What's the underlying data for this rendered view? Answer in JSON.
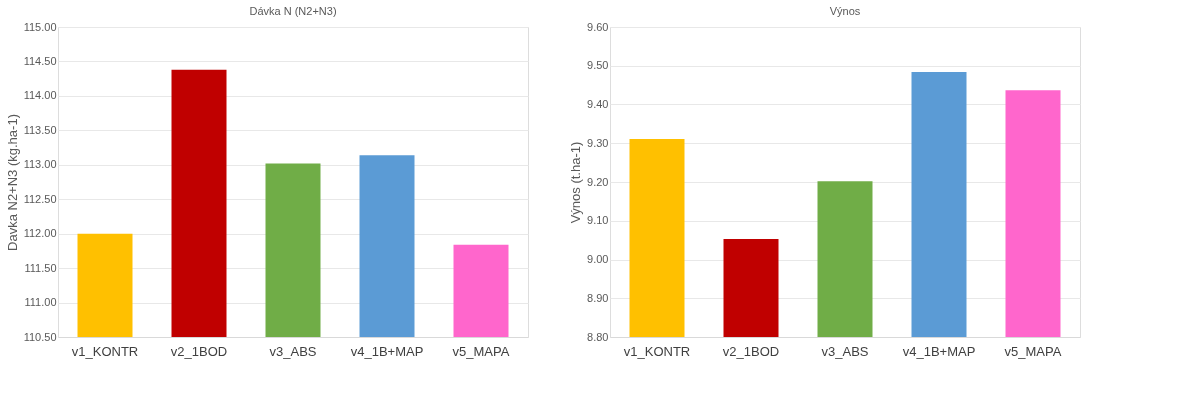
{
  "chart_data": [
    {
      "type": "bar",
      "title": "Dávka N (N2+N3)",
      "ylabel": "Davka N2+N3 (kg.ha-1)",
      "categories": [
        "v1_KONTR",
        "v2_1BOD",
        "v3_ABS",
        "v4_1B+MAP",
        "v5_MAPA"
      ],
      "values": [
        112.0,
        114.38,
        113.02,
        113.14,
        111.84
      ],
      "colors": [
        "#ffc000",
        "#c00000",
        "#70ad47",
        "#5b9bd5",
        "#ff66cc"
      ],
      "ylim": [
        110.5,
        115.0
      ],
      "yticks": [
        {
          "value": 110.5,
          "label": "110.50"
        },
        {
          "value": 111.0,
          "label": "111.00"
        },
        {
          "value": 111.5,
          "label": "111.50"
        },
        {
          "value": 112.0,
          "label": "112.00"
        },
        {
          "value": 112.5,
          "label": "112.50"
        },
        {
          "value": 113.0,
          "label": "113.00"
        },
        {
          "value": 113.5,
          "label": "113.50"
        },
        {
          "value": 114.0,
          "label": "114.00"
        },
        {
          "value": 114.5,
          "label": "114.50"
        },
        {
          "value": 115.0,
          "label": "115.00"
        }
      ],
      "grid": "y"
    },
    {
      "type": "bar",
      "title": "Výnos",
      "ylabel": "Výnos (t.ha-1)",
      "categories": [
        "v1_KONTR",
        "v2_1BOD",
        "v3_ABS",
        "v4_1B+MAP",
        "v5_MAPA"
      ],
      "values": [
        9.311,
        9.053,
        9.202,
        9.484,
        9.437
      ],
      "colors": [
        "#ffc000",
        "#c00000",
        "#70ad47",
        "#5b9bd5",
        "#ff66cc"
      ],
      "ylim": [
        8.8,
        9.6
      ],
      "yticks": [
        {
          "value": 8.8,
          "label": "8.80"
        },
        {
          "value": 8.9,
          "label": "8.90"
        },
        {
          "value": 9.0,
          "label": "9.00"
        },
        {
          "value": 9.1,
          "label": "9.10"
        },
        {
          "value": 9.2,
          "label": "9.20"
        },
        {
          "value": 9.3,
          "label": "9.30"
        },
        {
          "value": 9.4,
          "label": "9.40"
        },
        {
          "value": 9.5,
          "label": "9.50"
        },
        {
          "value": 9.6,
          "label": "9.60"
        }
      ],
      "grid": "y"
    }
  ]
}
